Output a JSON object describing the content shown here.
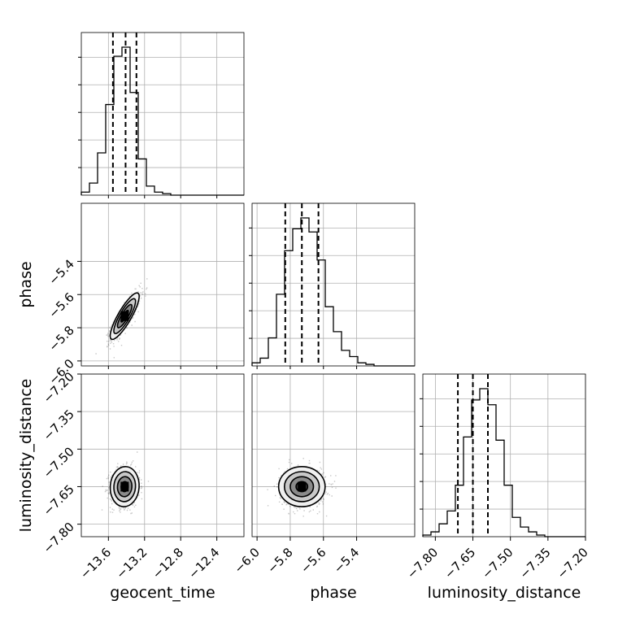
{
  "chart_data": {
    "type": "corner",
    "parameters": [
      "geocent_time",
      "phase",
      "luminosity_distance"
    ],
    "axis_labels": {
      "geocent_time": "geocent_time",
      "phase": "phase",
      "luminosity_distance": "luminosity_distance"
    },
    "ranges": {
      "geocent_time": [
        -13.9,
        -12.1
      ],
      "phase": [
        -6.03,
        -5.05
      ],
      "luminosity_distance": [
        -7.85,
        -7.2
      ]
    },
    "ticks": {
      "geocent_time": [
        "−13.6",
        "−13.2",
        "−12.8",
        "−12.4"
      ],
      "phase": [
        "−6.0",
        "−5.8",
        "−5.6",
        "−5.4"
      ],
      "luminosity_distance": [
        "−7.80",
        "−7.65",
        "−7.50",
        "−7.35",
        "−7.20"
      ]
    },
    "tick_values": {
      "geocent_time": [
        -13.6,
        -13.2,
        -12.8,
        -12.4
      ],
      "phase": [
        -6.0,
        -5.8,
        -5.6,
        -5.4
      ],
      "luminosity_distance": [
        -7.8,
        -7.65,
        -7.5,
        -7.35,
        -7.2
      ]
    },
    "quantiles": {
      "geocent_time": [
        -13.55,
        -13.41,
        -13.29
      ],
      "phase": [
        -5.83,
        -5.73,
        -5.63
      ],
      "luminosity_distance": [
        -7.71,
        -7.65,
        -7.59
      ]
    },
    "histograms": {
      "geocent_time": [
        2,
        8,
        28,
        60,
        92,
        98,
        68,
        24,
        6,
        2,
        1,
        0,
        0,
        0,
        0,
        0,
        0,
        0,
        0,
        0
      ],
      "phase": [
        2,
        5,
        18,
        46,
        74,
        88,
        95,
        86,
        68,
        38,
        22,
        10,
        6,
        2,
        1,
        0,
        0,
        0,
        0,
        0
      ],
      "luminosity_distance": [
        1,
        3,
        8,
        16,
        32,
        62,
        85,
        92,
        82,
        60,
        32,
        12,
        6,
        3,
        1,
        0,
        0,
        0,
        0,
        0
      ]
    },
    "pairs": [
      {
        "x": "geocent_time",
        "y": "phase",
        "center": [
          -13.42,
          -5.73
        ],
        "sigma": [
          0.08,
          0.07
        ],
        "rho": 0.85
      },
      {
        "x": "geocent_time",
        "y": "luminosity_distance",
        "center": [
          -13.42,
          -7.65
        ],
        "sigma": [
          0.08,
          0.04
        ],
        "rho": 0.05
      },
      {
        "x": "phase",
        "y": "luminosity_distance",
        "center": [
          -5.73,
          -7.65
        ],
        "sigma": [
          0.07,
          0.04
        ],
        "rho": 0.0
      }
    ],
    "grid": true,
    "legend": "none"
  }
}
